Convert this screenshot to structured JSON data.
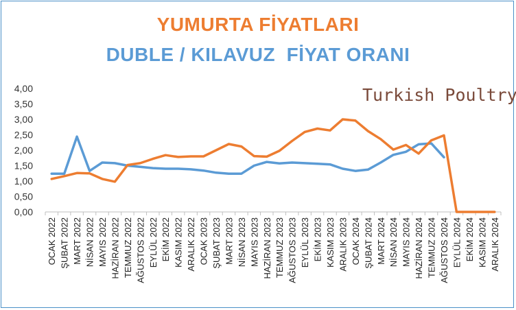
{
  "chart_data": {
    "type": "line",
    "title": "YUMURTA FİYATLARI",
    "subtitle": "DUBLE / KILAVUZ  FİYAT ORANI",
    "watermark": "Turkish Poultry",
    "categories": [
      "OCAK 2022",
      "ŞUBAT 2022",
      "MART 2022",
      "NİSAN 2022",
      "MAYIS 2022",
      "HAZİRAN 2022",
      "TEMMUZ 2022",
      "AĞUSTOS 2022",
      "EYLÜL 2022",
      "EKİM 2022",
      "KASIM 2022",
      "ARALIK 2022",
      "OCAK 2023",
      "ŞUBAT 2023",
      "MART 2023",
      "NİSAN 2023",
      "MAYIS 2023",
      "HAZİRAN 2023",
      "TEMMUZ 2023",
      "AĞUSTOS 2023",
      "EYLÜL 2023",
      "EKİM 2023",
      "KASIM 2023",
      "ARALIK 2023",
      "OCAK 2024",
      "ŞUBAT 2024",
      "MART 2024",
      "NİSAN 2024",
      "MAYIS 2024",
      "HAZİRAN 2024",
      "TEMMUZ 2024",
      "AĞUSTOS 2024",
      "EYLÜL 2024",
      "EKİM 2024",
      "KASIM 2024",
      "ARALIK 2024"
    ],
    "yticks": [
      "4,00",
      "3,50",
      "3,00",
      "2,50",
      "2,00",
      "1,50",
      "1,00",
      "0,50",
      "0,00"
    ],
    "ylim": [
      0,
      4
    ],
    "grid": false,
    "legend": "none",
    "series": [
      {
        "color": "#5b9bd5",
        "values": [
          1.24,
          1.24,
          2.44,
          1.33,
          1.6,
          1.58,
          1.5,
          1.46,
          1.42,
          1.4,
          1.4,
          1.38,
          1.34,
          1.27,
          1.24,
          1.24,
          1.5,
          1.62,
          1.57,
          1.6,
          1.58,
          1.56,
          1.54,
          1.4,
          1.33,
          1.37,
          1.6,
          1.85,
          1.95,
          2.19,
          2.22,
          1.77,
          null,
          null,
          null,
          null
        ]
      },
      {
        "color": "#ed7d31",
        "values": [
          1.07,
          1.16,
          1.26,
          1.25,
          1.07,
          0.98,
          1.52,
          1.58,
          1.72,
          1.84,
          1.78,
          1.8,
          1.8,
          2.0,
          2.2,
          2.12,
          1.81,
          1.79,
          1.98,
          2.3,
          2.59,
          2.7,
          2.64,
          3.0,
          2.96,
          2.62,
          2.36,
          2.02,
          2.17,
          1.89,
          2.32,
          2.48,
          0.0,
          0.0,
          0.0,
          0.0
        ]
      }
    ]
  }
}
